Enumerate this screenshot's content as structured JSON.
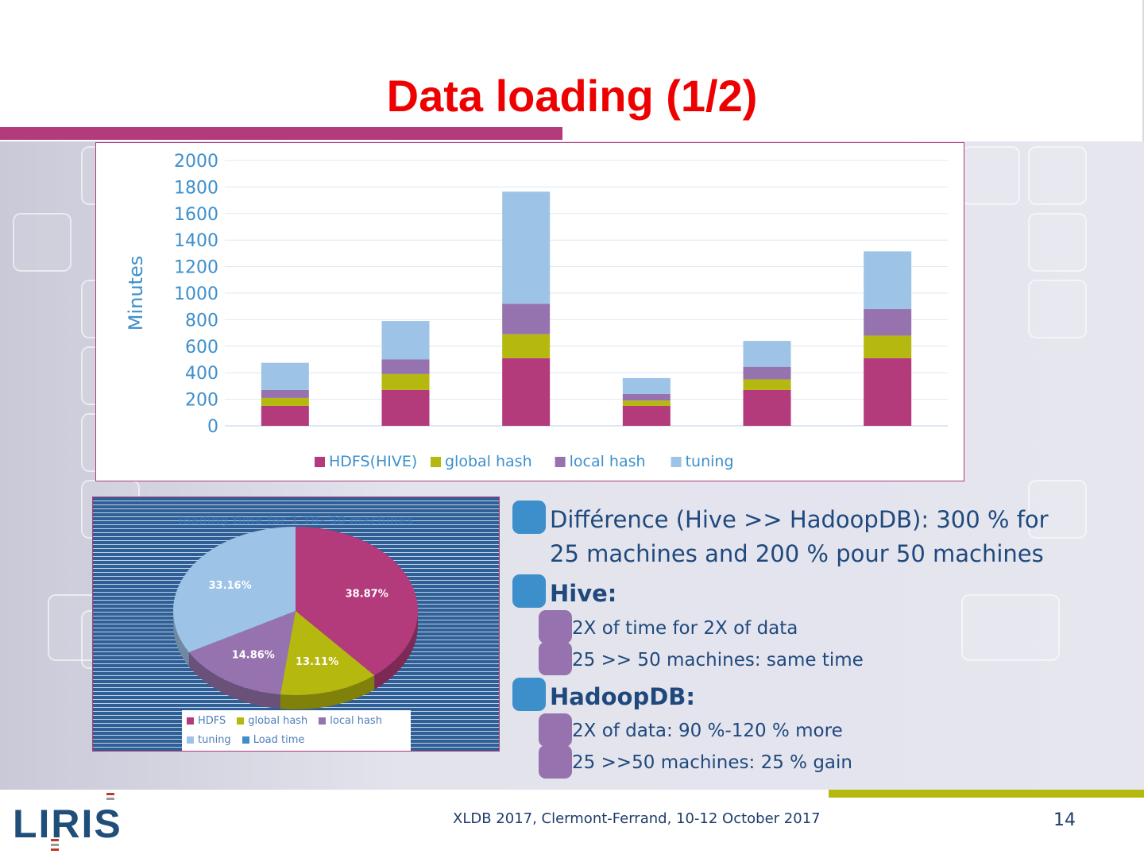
{
  "slide": {
    "title": "Data loading (1/2)",
    "footer": "XLDB 2017,  Clermont-Ferrand, 10-12 October 2017",
    "page_number": "14",
    "logo_text": "LIRIS"
  },
  "chart_data": [
    {
      "type": "bar",
      "stacked": true,
      "title": "",
      "xlabel": "",
      "ylabel": "Minutes",
      "ylim": [
        0,
        2000
      ],
      "yticks": [
        0,
        200,
        400,
        600,
        800,
        1000,
        1200,
        1400,
        1600,
        1800,
        2000
      ],
      "categories": [
        "",
        "",
        "",
        "",
        "",
        ""
      ],
      "grid": true,
      "legend_position": "bottom",
      "series": [
        {
          "name": "HDFS(HIVE)",
          "color": "#b33a7b",
          "values": [
            150,
            270,
            510,
            150,
            270,
            510
          ]
        },
        {
          "name": "global hash",
          "color": "#b5b80e",
          "values": [
            60,
            120,
            180,
            40,
            80,
            170
          ]
        },
        {
          "name": "local hash",
          "color": "#9673ae",
          "values": [
            60,
            110,
            230,
            50,
            95,
            200
          ]
        },
        {
          "name": "tuning",
          "color": "#9dc3e6",
          "values": [
            205,
            290,
            845,
            120,
            195,
            435
          ]
        }
      ]
    },
    {
      "type": "pie",
      "title": "loading time for 1 TB- 50 machines",
      "legend_position": "bottom",
      "slices": [
        {
          "name": "HDFS",
          "value": 38.87,
          "label": "38.87%",
          "color": "#b33a7b"
        },
        {
          "name": "global hash",
          "value": 13.11,
          "label": "13.11%",
          "color": "#b5b80e"
        },
        {
          "name": "local hash",
          "value": 14.86,
          "label": "14.86%",
          "color": "#9673ae"
        },
        {
          "name": "tuning",
          "value": 33.16,
          "label": "33.16%",
          "color": "#9dc3e6"
        }
      ],
      "legend_entries": [
        {
          "name": "HDFS",
          "color": "#b33a7b"
        },
        {
          "name": "global hash",
          "color": "#b5b80e"
        },
        {
          "name": "local hash",
          "color": "#9673ae"
        },
        {
          "name": "tuning",
          "color": "#9dc3e6"
        },
        {
          "name": "Load time",
          "color": "#3d8fcb"
        }
      ]
    }
  ],
  "bullets": {
    "item1_line1": "Différence (Hive >> HadoopDB): 300 % for",
    "item1_line2": "25 machines and 200 % pour 50 machines",
    "hive": "Hive:",
    "hive_sub1": "2X of time for 2X of data",
    "hive_sub2": "25 >> 50 machines: same time",
    "hadoopdb": "HadoopDB:",
    "hadoopdb_sub1": "2X of data: 90 %-120 %  more",
    "hadoopdb_sub2": "25 >>50 machines: 25 % gain"
  }
}
